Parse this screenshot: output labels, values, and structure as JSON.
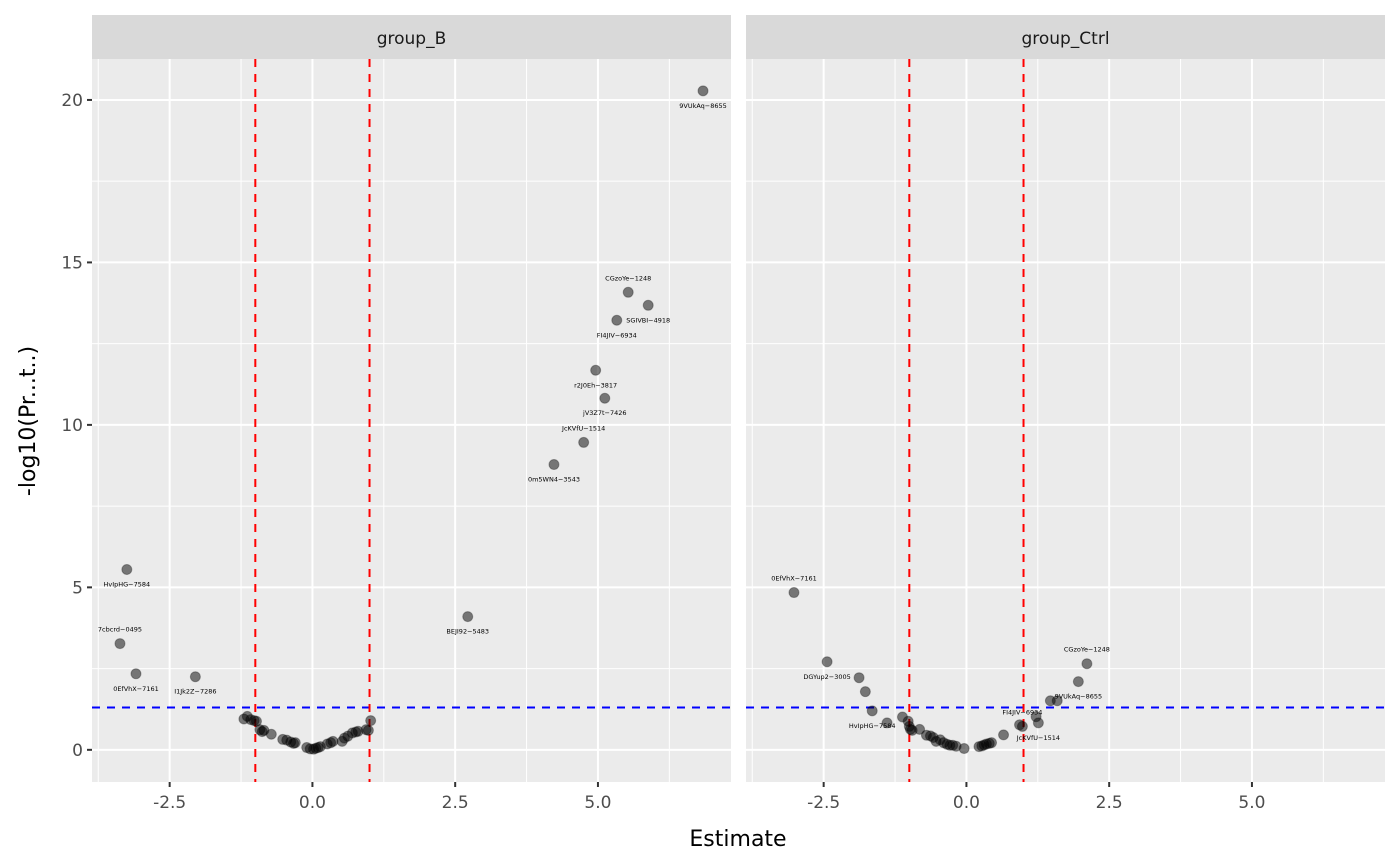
{
  "chart_data": {
    "type": "scatter",
    "title": "",
    "xlabel": "Estimate",
    "ylabel": "-log10(Pr...t..)",
    "xlim": [
      -3.86,
      7.33
    ],
    "ylim": [
      -0.99,
      21.26
    ],
    "x_ticks": [
      -2.5,
      0.0,
      2.5,
      5.0
    ],
    "x_tick_labels": [
      "-2.5",
      "0.0",
      "2.5",
      "5.0"
    ],
    "y_ticks": [
      0,
      5,
      10,
      15,
      20
    ],
    "y_tick_labels": [
      "0",
      "5",
      "10",
      "15",
      "20"
    ],
    "grid": true,
    "legend": "none",
    "reference_lines": {
      "vertical": {
        "values": [
          -1,
          1
        ],
        "color": "#ff0000",
        "style": "dashed"
      },
      "horizontal": {
        "values": [
          1.301
        ],
        "color": "#0000ff",
        "style": "dashed"
      }
    },
    "point_color": "#000000",
    "point_alpha": 0.5,
    "panels": [
      {
        "strip": "group_B",
        "points": [
          {
            "x": 6.84,
            "y": 20.28,
            "label": "9VUkAq−8655"
          },
          {
            "x": 5.53,
            "y": 14.08,
            "label": "CGzoYe−1248"
          },
          {
            "x": 5.88,
            "y": 13.68,
            "label": "SGIVBI−4918"
          },
          {
            "x": 5.33,
            "y": 13.22,
            "label": "FI4JIV−6934"
          },
          {
            "x": 4.96,
            "y": 11.68,
            "label": "r2J0Eh−3817"
          },
          {
            "x": 5.12,
            "y": 10.82,
            "label": "jV3Z7t−7426"
          },
          {
            "x": 4.75,
            "y": 9.46,
            "label": "JcKVfU−1514"
          },
          {
            "x": 4.23,
            "y": 8.78,
            "label": "0m5WN4−3543"
          },
          {
            "x": 2.72,
            "y": 4.1,
            "label": "BEJI92−5483"
          },
          {
            "x": -3.25,
            "y": 5.55,
            "label": "HvIpHG−7584"
          },
          {
            "x": -3.37,
            "y": 3.27,
            "label": "7cbcrd−0495"
          },
          {
            "x": -3.09,
            "y": 2.34,
            "label": "0EfVhX−7161"
          },
          {
            "x": -2.05,
            "y": 2.25,
            "label": "I1Jk2Z−7286"
          },
          {
            "x": -1.2,
            "y": 0.95
          },
          {
            "x": -1.14,
            "y": 1.03
          },
          {
            "x": -1.08,
            "y": 0.93
          },
          {
            "x": -1.02,
            "y": 0.9
          },
          {
            "x": -0.98,
            "y": 0.88
          },
          {
            "x": -0.92,
            "y": 0.62
          },
          {
            "x": -0.88,
            "y": 0.56
          },
          {
            "x": -0.85,
            "y": 0.6
          },
          {
            "x": -0.72,
            "y": 0.48
          },
          {
            "x": -0.52,
            "y": 0.32
          },
          {
            "x": -0.45,
            "y": 0.3
          },
          {
            "x": -0.38,
            "y": 0.24
          },
          {
            "x": -0.33,
            "y": 0.2
          },
          {
            "x": -0.3,
            "y": 0.22
          },
          {
            "x": -0.1,
            "y": 0.07
          },
          {
            "x": -0.04,
            "y": 0.03
          },
          {
            "x": 0.02,
            "y": 0.02
          },
          {
            "x": 0.06,
            "y": 0.05
          },
          {
            "x": 0.1,
            "y": 0.07
          },
          {
            "x": 0.14,
            "y": 0.1
          },
          {
            "x": 0.26,
            "y": 0.18
          },
          {
            "x": 0.32,
            "y": 0.22
          },
          {
            "x": 0.36,
            "y": 0.26
          },
          {
            "x": 0.52,
            "y": 0.26
          },
          {
            "x": 0.56,
            "y": 0.36
          },
          {
            "x": 0.62,
            "y": 0.42
          },
          {
            "x": 0.7,
            "y": 0.52
          },
          {
            "x": 0.76,
            "y": 0.55
          },
          {
            "x": 0.8,
            "y": 0.57
          },
          {
            "x": 0.94,
            "y": 0.62
          },
          {
            "x": 0.98,
            "y": 0.6
          },
          {
            "x": 1.02,
            "y": 0.9
          }
        ]
      },
      {
        "strip": "group_Ctrl",
        "points": [
          {
            "x": -3.02,
            "y": 4.84,
            "label": "0EfVhX−7161"
          },
          {
            "x": -2.44,
            "y": 2.71,
            "label": "DGYup2−3005"
          },
          {
            "x": 2.11,
            "y": 2.65,
            "label": "CGzoYe−1248"
          },
          {
            "x": 1.96,
            "y": 2.1,
            "label": "9VUkAq−8655"
          },
          {
            "x": -1.65,
            "y": 1.2,
            "label": "HvIpHG−7584"
          },
          {
            "x": 0.98,
            "y": 0.72,
            "label": "FI4JIV−6934"
          },
          {
            "x": 1.26,
            "y": 0.83,
            "label": "JcKVfU−1514"
          },
          {
            "x": -1.88,
            "y": 2.22
          },
          {
            "x": -1.77,
            "y": 1.79
          },
          {
            "x": -1.39,
            "y": 0.83
          },
          {
            "x": -1.12,
            "y": 1.01
          },
          {
            "x": -1.02,
            "y": 0.88
          },
          {
            "x": -1.0,
            "y": 0.72
          },
          {
            "x": -0.98,
            "y": 0.63
          },
          {
            "x": -0.95,
            "y": 0.6
          },
          {
            "x": -0.82,
            "y": 0.63
          },
          {
            "x": -0.7,
            "y": 0.45
          },
          {
            "x": -0.63,
            "y": 0.43
          },
          {
            "x": -0.58,
            "y": 0.38
          },
          {
            "x": -0.53,
            "y": 0.26
          },
          {
            "x": -0.46,
            "y": 0.31
          },
          {
            "x": -0.4,
            "y": 0.22
          },
          {
            "x": -0.34,
            "y": 0.17
          },
          {
            "x": -0.29,
            "y": 0.14
          },
          {
            "x": -0.24,
            "y": 0.14
          },
          {
            "x": -0.18,
            "y": 0.11
          },
          {
            "x": -0.04,
            "y": 0.04
          },
          {
            "x": 0.22,
            "y": 0.1
          },
          {
            "x": 0.27,
            "y": 0.12
          },
          {
            "x": 0.31,
            "y": 0.15
          },
          {
            "x": 0.35,
            "y": 0.18
          },
          {
            "x": 0.4,
            "y": 0.2
          },
          {
            "x": 0.44,
            "y": 0.22
          },
          {
            "x": 0.65,
            "y": 0.46
          },
          {
            "x": 0.93,
            "y": 0.77
          },
          {
            "x": 1.22,
            "y": 1.02
          },
          {
            "x": 1.47,
            "y": 1.51
          },
          {
            "x": 1.59,
            "y": 1.51
          }
        ]
      }
    ]
  }
}
